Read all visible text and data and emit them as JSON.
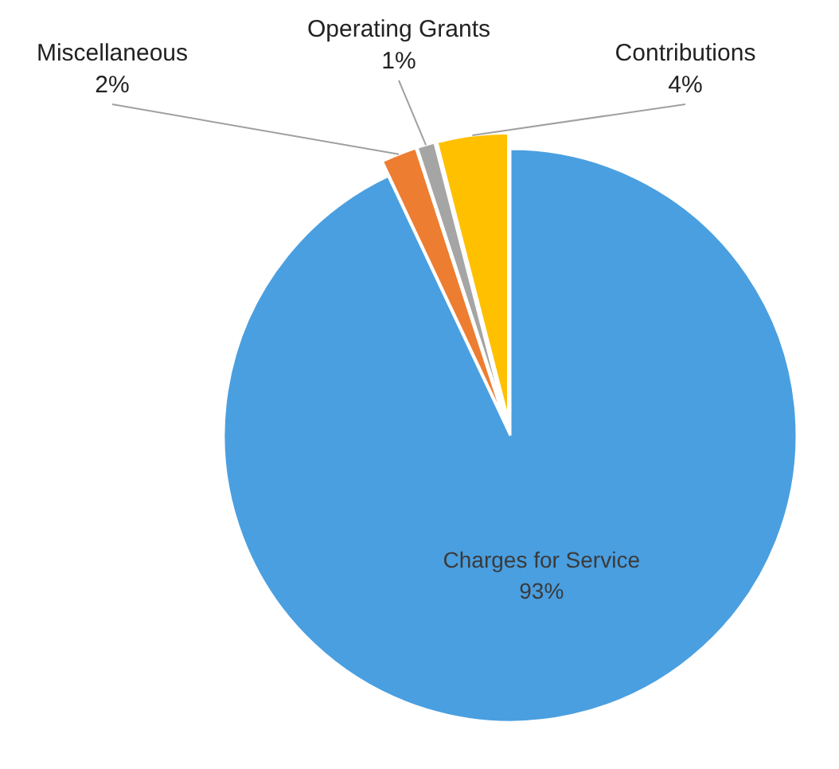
{
  "chart_data": {
    "type": "pie",
    "categories": [
      "Charges for Service",
      "Miscellaneous",
      "Operating Grants",
      "Contributions"
    ],
    "values": [
      93,
      2,
      1,
      4
    ],
    "colors": [
      "#4a9fe0",
      "#ed7d31",
      "#a5a5a5",
      "#ffc000"
    ],
    "value_labels": [
      "93%",
      "2%",
      "1%",
      "4%"
    ]
  }
}
